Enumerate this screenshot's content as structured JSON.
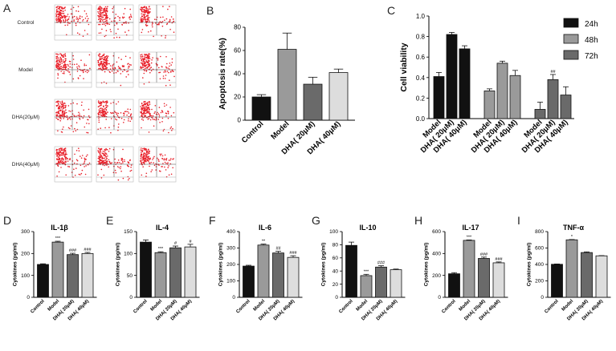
{
  "panel_a": {
    "letter": "A",
    "rows": [
      "Control",
      "Model",
      "DHA(20μM)",
      "DHA(40μM)"
    ],
    "colors": {
      "dots": "#e8202a",
      "gate": "#444444",
      "frame": "#bbbbbb"
    }
  },
  "chart_data": [
    {
      "id": "B",
      "type": "bar",
      "letter": "B",
      "categories": [
        "Control",
        "Model",
        "DHA( 20μM)",
        "DHA( 40μM)"
      ],
      "values": [
        20,
        61,
        31,
        41
      ],
      "errors": [
        2,
        14,
        6,
        3
      ],
      "colors": [
        "#111111",
        "#9a9a9a",
        "#6a6a6a",
        "#dddddd"
      ],
      "ylabel": "Apoptosis rate(%)",
      "ylim": [
        0,
        80
      ],
      "yticks": [
        0,
        20,
        40,
        60,
        80
      ],
      "annotations": []
    },
    {
      "id": "C",
      "type": "bar",
      "letter": "C",
      "groups": [
        "Model",
        "DHA( 20μM)",
        "DHA( 40μM)"
      ],
      "series": [
        {
          "name": "24h",
          "color": "#111111",
          "values": [
            0.41,
            0.82,
            0.68
          ],
          "errors": [
            0.04,
            0.02,
            0.03
          ]
        },
        {
          "name": "48h",
          "color": "#9a9a9a",
          "values": [
            0.27,
            0.54,
            0.42
          ],
          "errors": [
            0.02,
            0.02,
            0.05
          ]
        },
        {
          "name": "72h",
          "color": "#6a6a6a",
          "values": [
            0.09,
            0.38,
            0.23
          ],
          "errors": [
            0.07,
            0.05,
            0.08
          ]
        }
      ],
      "ylabel": "Cell viability",
      "ylim": [
        0,
        1.0
      ],
      "yticks": [
        0.0,
        0.2,
        0.4,
        0.6,
        0.8,
        1.0
      ],
      "annotation": "##",
      "legend_position": "right"
    },
    {
      "id": "D",
      "type": "bar",
      "letter": "D",
      "title": "IL-1β",
      "categories": [
        "Control",
        "Model",
        "DHA( 20μM)",
        "DHA( 40μM)"
      ],
      "values": [
        150,
        252,
        195,
        200
      ],
      "errors": [
        3,
        4,
        6,
        5
      ],
      "colors": [
        "#111111",
        "#9a9a9a",
        "#6a6a6a",
        "#dddddd"
      ],
      "ylabel": "Cytokines (pg/ml)",
      "ylim": [
        0,
        300
      ],
      "yticks": [
        0,
        100,
        200,
        300
      ],
      "annotations": [
        "",
        "***",
        "###",
        "###"
      ]
    },
    {
      "id": "E",
      "type": "bar",
      "letter": "E",
      "title": "IL-4",
      "categories": [
        "Control",
        "Model",
        "DHA( 20μM)",
        "DHA( 40μM)"
      ],
      "values": [
        126,
        102,
        113,
        115
      ],
      "errors": [
        5,
        2,
        4,
        6
      ],
      "colors": [
        "#111111",
        "#9a9a9a",
        "#6a6a6a",
        "#dddddd"
      ],
      "ylabel": "Cytokines (pg/ml)",
      "ylim": [
        0,
        150
      ],
      "yticks": [
        0,
        50,
        100,
        150
      ],
      "annotations": [
        "",
        "***",
        "#",
        "#"
      ]
    },
    {
      "id": "F",
      "type": "bar",
      "letter": "F",
      "title": "IL-6",
      "categories": [
        "Control",
        "Model",
        "DHA( 20μM)",
        "DHA( 40μM)"
      ],
      "values": [
        190,
        318,
        270,
        243
      ],
      "errors": [
        5,
        6,
        10,
        10
      ],
      "colors": [
        "#111111",
        "#9a9a9a",
        "#6a6a6a",
        "#dddddd"
      ],
      "ylabel": "Cytokines (pg/ml)",
      "ylim": [
        0,
        400
      ],
      "yticks": [
        0,
        100,
        200,
        300,
        400
      ],
      "annotations": [
        "",
        "**",
        "##",
        "###"
      ]
    },
    {
      "id": "G",
      "type": "bar",
      "letter": "G",
      "title": "IL-10",
      "categories": [
        "Control",
        "Model",
        "DHA( 20μM)",
        "DHA( 40μM)"
      ],
      "values": [
        79,
        33,
        46,
        42
      ],
      "errors": [
        5,
        2,
        2,
        1
      ],
      "colors": [
        "#111111",
        "#9a9a9a",
        "#6a6a6a",
        "#dddddd"
      ],
      "ylabel": "Cytokines (pg/ml)",
      "ylim": [
        0,
        100
      ],
      "yticks": [
        0,
        20,
        40,
        60,
        80,
        100
      ],
      "annotations": [
        "",
        "***",
        "###",
        ""
      ]
    },
    {
      "id": "H",
      "type": "bar",
      "letter": "H",
      "title": "IL-17",
      "categories": [
        "Control",
        "Model",
        "DHA( 20μM)",
        "DHA( 40μM)"
      ],
      "values": [
        215,
        520,
        355,
        315
      ],
      "errors": [
        10,
        4,
        12,
        8
      ],
      "colors": [
        "#111111",
        "#9a9a9a",
        "#6a6a6a",
        "#dddddd"
      ],
      "ylabel": "Cytokines (pg/ml)",
      "ylim": [
        0,
        600
      ],
      "yticks": [
        0,
        200,
        400,
        600
      ],
      "annotations": [
        "",
        "***",
        "###",
        "###"
      ]
    },
    {
      "id": "I",
      "type": "bar",
      "letter": "I",
      "title": "TNF-α",
      "categories": [
        "Control",
        "Model",
        "DHA( 20μM)",
        "DHA( 40μM)"
      ],
      "values": [
        402,
        700,
        545,
        505
      ],
      "errors": [
        4,
        4,
        8,
        3
      ],
      "colors": [
        "#111111",
        "#9a9a9a",
        "#6a6a6a",
        "#dddddd"
      ],
      "ylabel": "Cytokines (pg/ml)",
      "ylim": [
        0,
        800
      ],
      "yticks": [
        0,
        200,
        400,
        600,
        800
      ],
      "annotations": [
        "",
        "*",
        "",
        ""
      ]
    }
  ]
}
